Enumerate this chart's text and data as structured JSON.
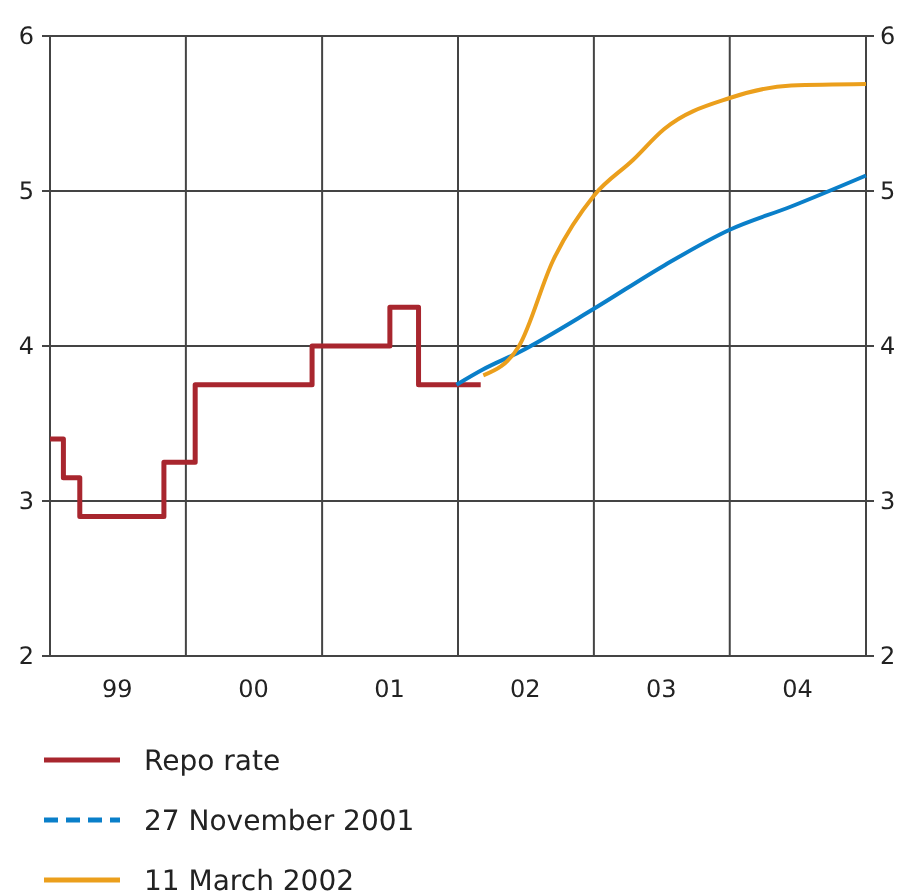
{
  "chart_data": {
    "type": "line",
    "xlim": [
      "1999-01-01",
      "2005-01-01"
    ],
    "xticks": [
      {
        "value": "1999-07-01",
        "label": "99"
      },
      {
        "value": "2000-01-01",
        "label": null
      },
      {
        "value": "2000-07-01",
        "label": "00"
      },
      {
        "value": "2001-01-01",
        "label": null
      },
      {
        "value": "2001-07-01",
        "label": "01"
      },
      {
        "value": "2002-01-01",
        "label": null
      },
      {
        "value": "2002-07-01",
        "label": "02"
      },
      {
        "value": "2003-01-01",
        "label": null
      },
      {
        "value": "2003-07-01",
        "label": "03"
      },
      {
        "value": "2004-01-01",
        "label": null
      },
      {
        "value": "2004-07-01",
        "label": "04"
      }
    ],
    "ylim": [
      2,
      6
    ],
    "yticks": [
      2,
      3,
      4,
      5,
      6
    ],
    "y2lim": [
      2,
      6
    ],
    "y2ticks": [
      2,
      3,
      4,
      5,
      6
    ],
    "grid": true,
    "legend": "bottom",
    "marker": "none",
    "series": [
      {
        "name": "Repo rate",
        "type": "step",
        "color": "#a8262e",
        "x": [
          "1999-01-01",
          "1999-02-06",
          "1999-03-22",
          "1999-11-03",
          "2000-01-26",
          "2000-12-05",
          "2001-07-02",
          "2001-09-17",
          "2002-03-03"
        ],
        "values": [
          3.4,
          3.15,
          2.9,
          3.25,
          3.75,
          4.0,
          4.25,
          3.75,
          3.75
        ]
      },
      {
        "name": "27 November 2001",
        "type": "line",
        "color": "#0a7fc9",
        "x": [
          "2001-12-28",
          "2002-03-10",
          "2002-06-14",
          "2003-01-01",
          "2003-07-09",
          "2004-01-01",
          "2004-06-14",
          "2005-01-01"
        ],
        "values": [
          3.75,
          3.85,
          3.96,
          4.24,
          4.52,
          4.75,
          4.9,
          5.1
        ]
      },
      {
        "name": "11 March 2002",
        "type": "line",
        "color": "#eb9f1c",
        "x": [
          "2002-03-10",
          "2002-06-14",
          "2002-09-13",
          "2003-01-01",
          "2003-04-16",
          "2003-07-09",
          "2004-01-01",
          "2004-06-14",
          "2005-01-01"
        ],
        "values": [
          3.81,
          4.0,
          4.55,
          4.97,
          5.2,
          5.4,
          5.6,
          5.68,
          5.69
        ]
      }
    ]
  }
}
